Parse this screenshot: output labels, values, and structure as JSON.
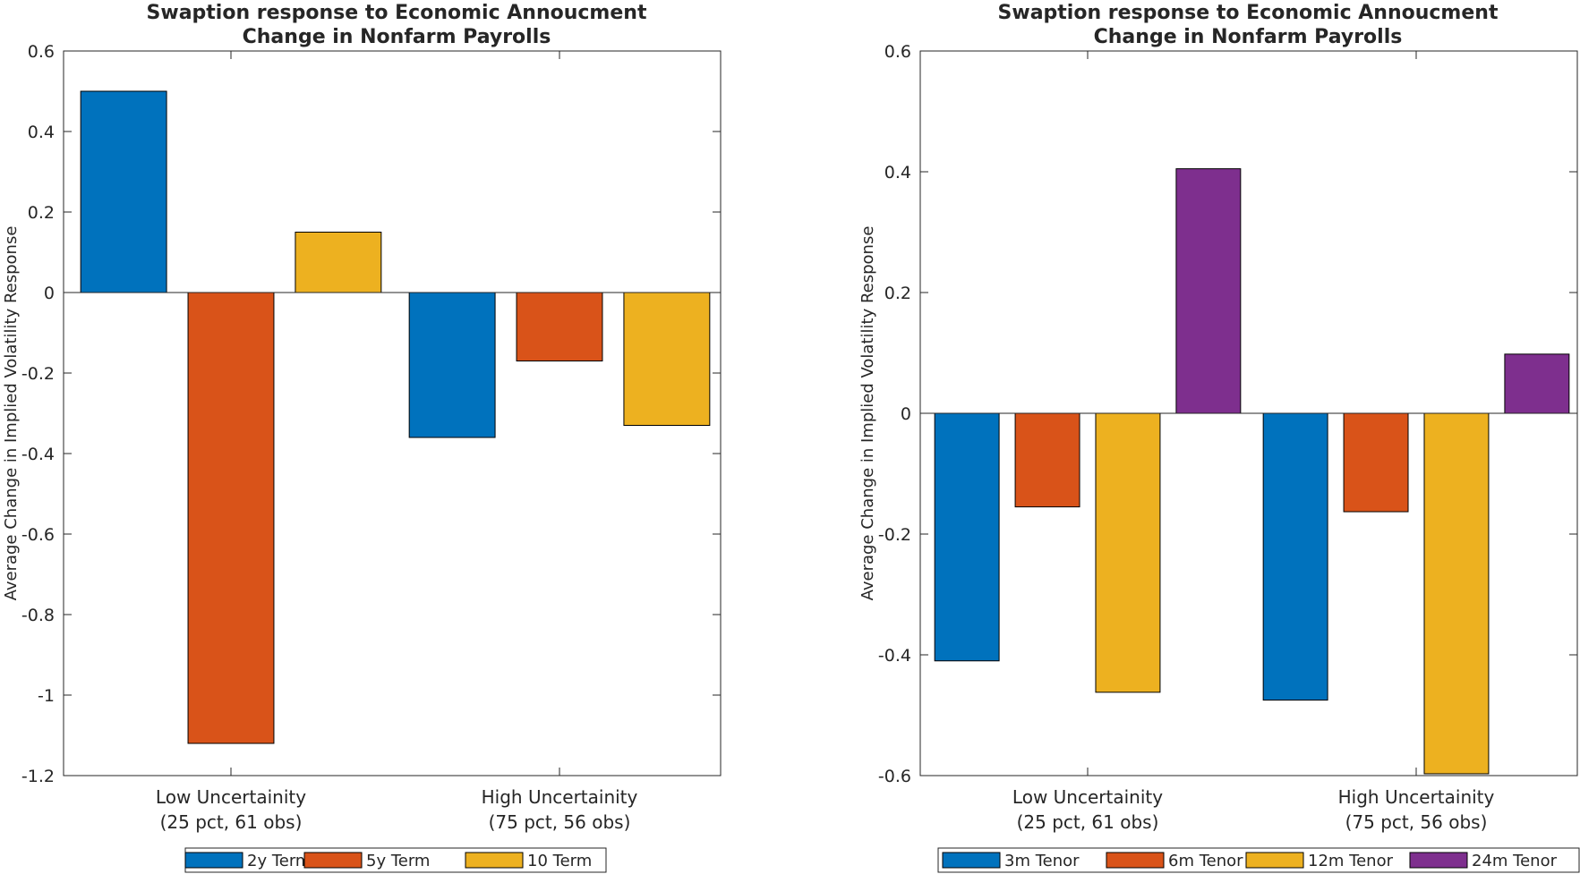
{
  "chart_data": [
    {
      "type": "bar",
      "title": [
        "Swaption response to Economic Annoucment",
        "Change in Nonfarm Payrolls"
      ],
      "ylabel": "Average Change in Implied Volatility Response",
      "ylim": [
        -1.2,
        0.6
      ],
      "yticks": [
        "-1.2",
        "-1",
        "-0.8",
        "-0.6",
        "-0.4",
        "-0.2",
        "0",
        "0.2",
        "0.4",
        "0.6"
      ],
      "categories": [
        [
          "Low Uncertainity",
          "(25 pct, 61 obs)"
        ],
        [
          "High Uncertainity",
          "(75 pct, 56 obs)"
        ]
      ],
      "series": [
        {
          "name": "2y Term",
          "color": "#0072BD",
          "values": [
            0.5,
            -0.36
          ]
        },
        {
          "name": "5y Term",
          "color": "#D95319",
          "values": [
            -1.12,
            -0.17
          ]
        },
        {
          "name": "10 Term",
          "color": "#EDB120",
          "values": [
            0.15,
            -0.33
          ]
        }
      ],
      "legend": "bottom"
    },
    {
      "type": "bar",
      "title": [
        "Swaption response to Economic Annoucment",
        "Change in Nonfarm Payrolls"
      ],
      "ylabel": "Average Change in Implied Volatility Response",
      "ylim": [
        -0.6,
        0.6
      ],
      "yticks": [
        "-0.6",
        "-0.4",
        "-0.2",
        "0",
        "0.2",
        "0.4",
        "0.6"
      ],
      "categories": [
        [
          "Low Uncertainity",
          "(25 pct, 61 obs)"
        ],
        [
          "High Uncertainity",
          "(75 pct, 56 obs)"
        ]
      ],
      "series": [
        {
          "name": "3m Tenor",
          "color": "#0072BD",
          "values": [
            -0.41,
            -0.475
          ]
        },
        {
          "name": "6m Tenor",
          "color": "#D95319",
          "values": [
            -0.155,
            -0.163
          ]
        },
        {
          "name": "12m Tenor",
          "color": "#EDB120",
          "values": [
            -0.462,
            -0.597
          ]
        },
        {
          "name": "24m Tenor",
          "color": "#7E2F8E",
          "values": [
            0.405,
            0.098
          ]
        }
      ],
      "legend": "bottom"
    }
  ]
}
